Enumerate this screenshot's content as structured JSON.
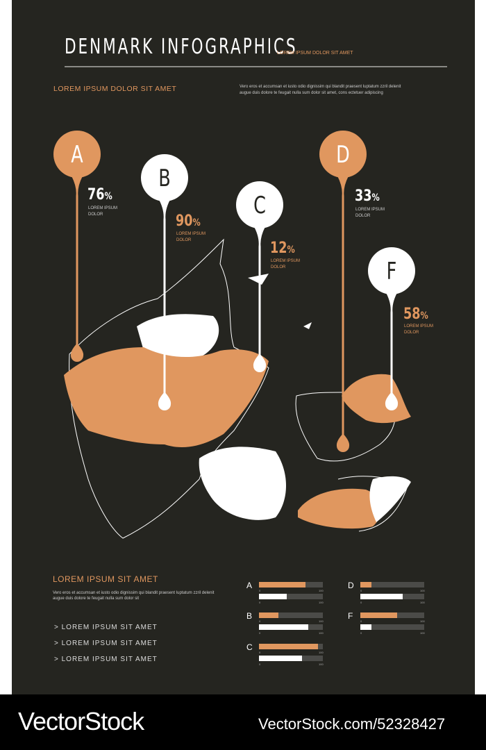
{
  "header": {
    "title": "DENMARK INFOGRAPHICS",
    "tagline": "LOREM IPSUM DOLOR SIT AMET",
    "subtitle": "LOREM IPSUM DOLOR SIT AMET",
    "intro": "Vero eros et accumsan et iusto odio dignissim qui blandit praesent luptatum zzril delenit augue duis dolore te feugait nulla sum dolor sit amet, cons ectetuer adipiscing"
  },
  "pins": [
    {
      "letter": "A",
      "value": "76",
      "unit": "%",
      "label": "LOREM IPSUM DOLOR",
      "color": "#e0975f"
    },
    {
      "letter": "B",
      "value": "90",
      "unit": "%",
      "label": "LOREM IPSUM DOLOR",
      "color": "#ffffff"
    },
    {
      "letter": "C",
      "value": "12",
      "unit": "%",
      "label": "LOREM IPSUM DOLOR",
      "color": "#ffffff"
    },
    {
      "letter": "D",
      "value": "33",
      "unit": "%",
      "label": "LOREM IPSUM DOLOR",
      "color": "#e0975f"
    },
    {
      "letter": "F",
      "value": "58",
      "unit": "%",
      "label": "LOREM IPSUM DOLOR",
      "color": "#ffffff"
    }
  ],
  "footer": {
    "heading": "LOREM IPSUM SIT AMET",
    "text": "Vero eros et accumsan et iusto odio dignissim qui blandit praesent luptatum zzril delenit augue duis dolore te feugait nulla sum dolor sit",
    "items": [
      "> LOREM IPSUM SIT AMET",
      "> LOREM IPSUM SIT AMET",
      "> LOREM IPSUM SIT AMET"
    ]
  },
  "bars": {
    "min": "0",
    "max": "100",
    "groups": [
      {
        "letter": "A",
        "orange": 73,
        "white": 43
      },
      {
        "letter": "B",
        "orange": 30,
        "white": 77
      },
      {
        "letter": "C",
        "orange": 92,
        "white": 67
      },
      {
        "letter": "D",
        "orange": 17,
        "white": 66
      },
      {
        "letter": "F",
        "orange": 58,
        "white": 17
      }
    ]
  },
  "colors": {
    "background": "#252520",
    "accent": "#e0975f",
    "track": "#4b4b48"
  },
  "watermark": {
    "brand": "VectorStock",
    "id": "VectorStock.com/52328427"
  }
}
